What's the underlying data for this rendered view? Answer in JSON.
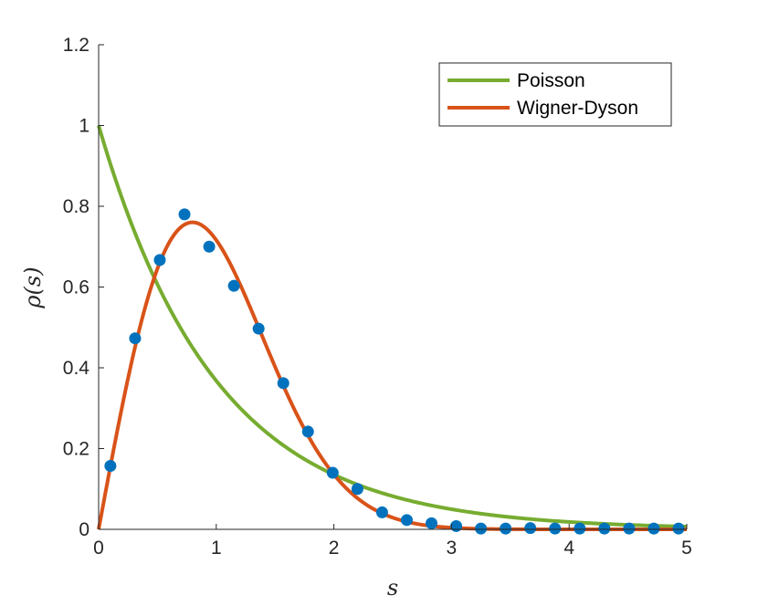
{
  "chart_data": {
    "type": "line",
    "xlabel": "s",
    "ylabel": "ρ(s)",
    "xlim": [
      0,
      5
    ],
    "ylim": [
      0,
      1.2
    ],
    "xticks": [
      "0",
      "1",
      "2",
      "3",
      "4",
      "5"
    ],
    "yticks": [
      "0",
      "0.2",
      "0.4",
      "0.6",
      "0.8",
      "1",
      "1.2"
    ],
    "grid": false,
    "legend_position": "top-right",
    "series": [
      {
        "name": "Poisson",
        "kind": "line",
        "color": "#77AC30",
        "function": "exp(-s)",
        "x": [
          0,
          0.25,
          0.5,
          0.75,
          1,
          1.25,
          1.5,
          1.75,
          2,
          2.5,
          3,
          3.5,
          4,
          4.5,
          5
        ],
        "y": [
          1,
          0.779,
          0.607,
          0.472,
          0.368,
          0.287,
          0.223,
          0.174,
          0.135,
          0.082,
          0.05,
          0.03,
          0.018,
          0.011,
          0.007
        ]
      },
      {
        "name": "Wigner-Dyson",
        "kind": "line",
        "color": "#D95319",
        "function": "(pi/2) s exp(-pi s^2 / 4)",
        "x": [
          0,
          0.25,
          0.5,
          0.75,
          0.8,
          1,
          1.25,
          1.5,
          1.75,
          2,
          2.25,
          2.5,
          3,
          3.5,
          4,
          5
        ],
        "y": [
          0,
          0.373,
          0.644,
          0.757,
          0.76,
          0.714,
          0.577,
          0.403,
          0.246,
          0.136,
          0.067,
          0.029,
          0.004,
          0,
          0,
          0
        ]
      },
      {
        "name": "",
        "kind": "scatter",
        "color": "#0072BD",
        "x": [
          0.1,
          0.31,
          0.52,
          0.73,
          0.94,
          1.15,
          1.36,
          1.57,
          1.78,
          1.99,
          2.2,
          2.41,
          2.62,
          2.83,
          3.04,
          3.25,
          3.46,
          3.67,
          3.88,
          4.09,
          4.3,
          4.51,
          4.72,
          4.93
        ],
        "y": [
          0.157,
          0.473,
          0.667,
          0.78,
          0.7,
          0.603,
          0.497,
          0.362,
          0.242,
          0.14,
          0.1,
          0.042,
          0.023,
          0.015,
          0.008,
          0.002,
          0.002,
          0.003,
          0.002,
          0.002,
          0.002,
          0.002,
          0.002,
          0.002
        ]
      }
    ]
  }
}
